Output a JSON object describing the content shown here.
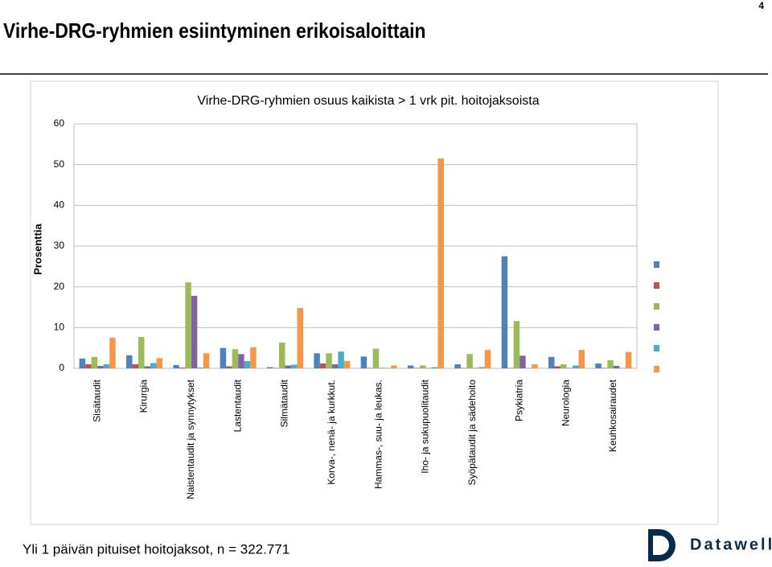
{
  "slide": {
    "title": "Virhe-DRG-ryhmien esiintyminen erikoisaloittain",
    "page_number": "4",
    "footer": "Yli 1 päivän pituiset hoitojaksot, n = 322.771",
    "logo": "Datawell"
  },
  "chart_data": {
    "type": "bar",
    "title": "Virhe-DRG-ryhmien osuus kaikista > 1 vrk pit. hoitojaksoista",
    "y_label": "Prosenttia",
    "categories": [
      "Sisätaudit",
      "Kirurgia",
      "Naistentaudit ja synnytykset",
      "Lastentaudit",
      "Silmätaudit",
      "Korva-, nenä- ja kurkkut.",
      "Hammas-, suu- ja leukas.",
      "Iho- ja sukupuolitaudit",
      "Syöpätaudit ja sädehoito",
      "Psykiatria",
      "Neurologia",
      "Keuhkosairaudet"
    ],
    "series": [
      {
        "color": "#4f81bd",
        "values": [
          2.4,
          3.2,
          0.8,
          5.0,
          0.3,
          3.7,
          2.9,
          0.7,
          1.0,
          27.5,
          2.8,
          1.2
        ]
      },
      {
        "color": "#c0504d",
        "values": [
          1.0,
          1.0,
          0.2,
          0.5,
          0.1,
          1.2,
          0.1,
          0.1,
          0.1,
          0.1,
          0.5,
          0.1
        ]
      },
      {
        "color": "#9bbb59",
        "values": [
          2.8,
          7.7,
          21.1,
          4.7,
          6.3,
          3.7,
          4.8,
          0.7,
          3.5,
          11.6,
          1.0,
          2.0
        ]
      },
      {
        "color": "#8064a2",
        "values": [
          0.6,
          0.5,
          17.8,
          3.5,
          0.7,
          1.0,
          0.1,
          0.1,
          0.1,
          3.1,
          0.1,
          0.6
        ]
      },
      {
        "color": "#4bacc6",
        "values": [
          1.0,
          1.3,
          0.2,
          1.8,
          0.9,
          4.1,
          0.1,
          0.3,
          0.3,
          0.1,
          0.7,
          0.1
        ]
      },
      {
        "color": "#f79646",
        "values": [
          7.5,
          2.5,
          3.7,
          5.2,
          14.8,
          1.8,
          0.7,
          51.5,
          4.5,
          1.0,
          4.5,
          4.0
        ]
      }
    ],
    "ylim": [
      0,
      60
    ],
    "yticks": [
      0,
      10,
      20,
      30,
      40,
      50,
      60
    ],
    "grid": true
  }
}
